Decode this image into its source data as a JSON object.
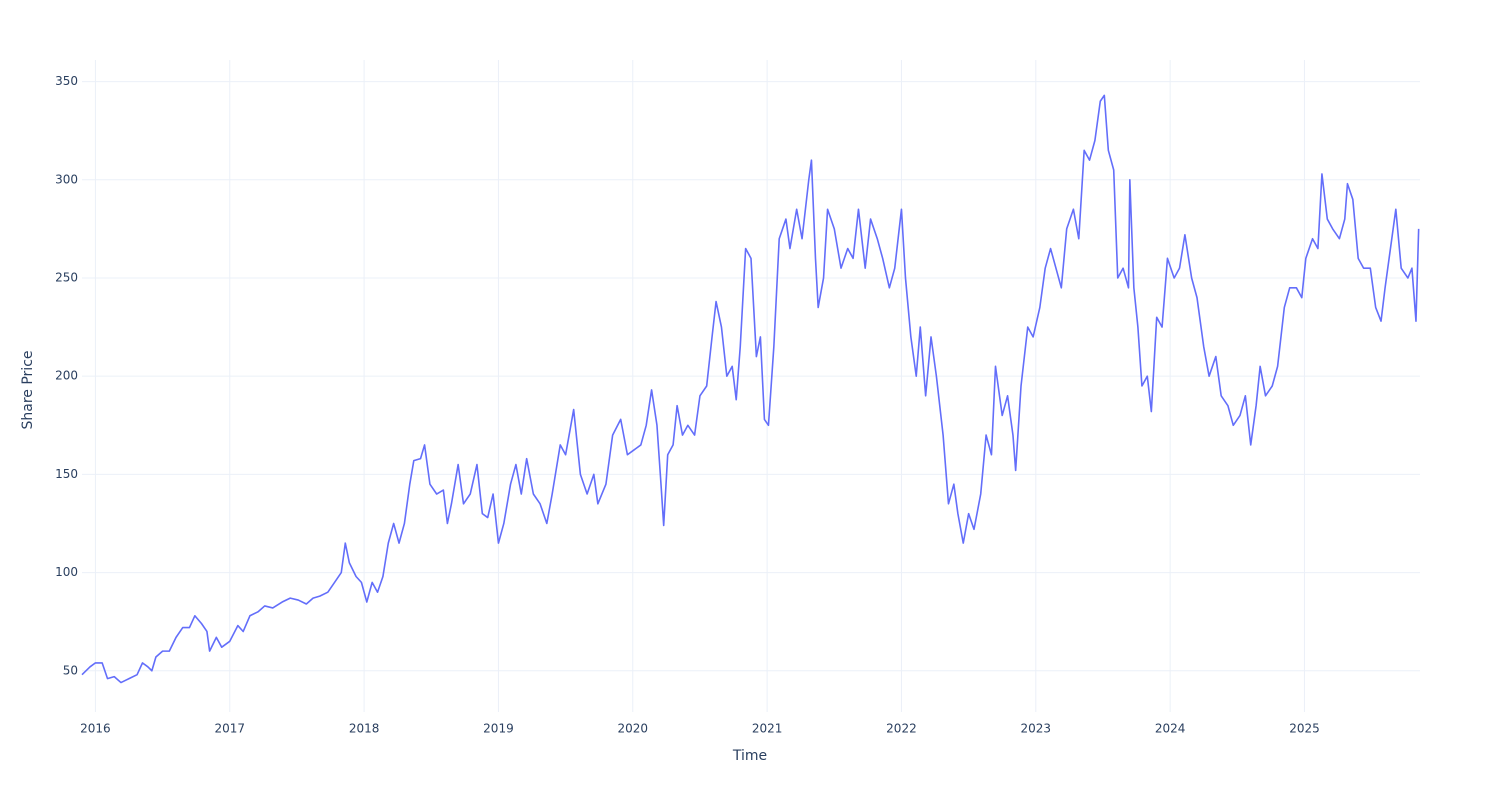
{
  "chart_data": {
    "type": "line",
    "x_label": "Time",
    "y_label": "Share Price",
    "color": "#636efa",
    "grid": true,
    "xlim": [
      2015.9,
      2025.86
    ],
    "ylim": [
      29,
      361
    ],
    "xticks": [
      2016,
      2017,
      2018,
      2019,
      2020,
      2021,
      2022,
      2023,
      2024,
      2025
    ],
    "yticks": [
      50,
      100,
      150,
      200,
      250,
      300,
      350
    ],
    "x": [
      2015.9,
      2015.96,
      2016.0,
      2016.05,
      2016.09,
      2016.14,
      2016.19,
      2016.25,
      2016.31,
      2016.35,
      2016.39,
      2016.42,
      2016.45,
      2016.5,
      2016.55,
      2016.6,
      2016.65,
      2016.7,
      2016.74,
      2016.79,
      2016.83,
      2016.85,
      2016.9,
      2016.94,
      2017.0,
      2017.06,
      2017.1,
      2017.15,
      2017.21,
      2017.26,
      2017.32,
      2017.39,
      2017.45,
      2017.51,
      2017.57,
      2017.62,
      2017.67,
      2017.73,
      2017.78,
      2017.83,
      2017.86,
      2017.89,
      2017.94,
      2017.98,
      2018.02,
      2018.06,
      2018.1,
      2018.14,
      2018.18,
      2018.22,
      2018.26,
      2018.3,
      2018.34,
      2018.37,
      2018.42,
      2018.45,
      2018.49,
      2018.54,
      2018.59,
      2018.62,
      2018.65,
      2018.7,
      2018.74,
      2018.79,
      2018.84,
      2018.88,
      2018.92,
      2018.96,
      2019.0,
      2019.04,
      2019.09,
      2019.13,
      2019.17,
      2019.21,
      2019.26,
      2019.31,
      2019.36,
      2019.4,
      2019.46,
      2019.5,
      2019.56,
      2019.61,
      2019.66,
      2019.71,
      2019.74,
      2019.8,
      2019.85,
      2019.91,
      2019.96,
      2020.0,
      2020.06,
      2020.1,
      2020.14,
      2020.18,
      2020.21,
      2020.23,
      2020.26,
      2020.3,
      2020.33,
      2020.37,
      2020.41,
      2020.46,
      2020.5,
      2020.55,
      2020.59,
      2020.62,
      2020.66,
      2020.7,
      2020.74,
      2020.77,
      2020.8,
      2020.84,
      2020.88,
      2020.92,
      2020.95,
      2020.98,
      2021.01,
      2021.05,
      2021.09,
      2021.14,
      2021.17,
      2021.22,
      2021.26,
      2021.31,
      2021.33,
      2021.36,
      2021.38,
      2021.42,
      2021.45,
      2021.5,
      2021.55,
      2021.6,
      2021.64,
      2021.68,
      2021.73,
      2021.77,
      2021.82,
      2021.86,
      2021.91,
      2021.95,
      2022.0,
      2022.03,
      2022.07,
      2022.11,
      2022.14,
      2022.18,
      2022.22,
      2022.26,
      2022.31,
      2022.35,
      2022.39,
      2022.42,
      2022.46,
      2022.5,
      2022.54,
      2022.59,
      2022.63,
      2022.67,
      2022.7,
      2022.75,
      2022.79,
      2022.83,
      2022.85,
      2022.89,
      2022.94,
      2022.98,
      2023.03,
      2023.07,
      2023.11,
      2023.15,
      2023.19,
      2023.23,
      2023.28,
      2023.32,
      2023.36,
      2023.4,
      2023.44,
      2023.48,
      2023.51,
      2023.54,
      2023.58,
      2023.61,
      2023.65,
      2023.69,
      2023.7,
      2023.73,
      2023.76,
      2023.79,
      2023.83,
      2023.86,
      2023.9,
      2023.94,
      2023.98,
      2024.03,
      2024.07,
      2024.11,
      2024.16,
      2024.2,
      2024.25,
      2024.29,
      2024.34,
      2024.38,
      2024.43,
      2024.47,
      2024.52,
      2024.56,
      2024.6,
      2024.64,
      2024.67,
      2024.71,
      2024.76,
      2024.8,
      2024.85,
      2024.89,
      2024.94,
      2024.98,
      2025.01,
      2025.06,
      2025.1,
      2025.13,
      2025.17,
      2025.21,
      2025.26,
      2025.3,
      2025.32,
      2025.36,
      2025.4,
      2025.44,
      2025.49,
      2025.53,
      2025.57,
      2025.6,
      2025.65,
      2025.68,
      2025.72,
      2025.77,
      2025.8,
      2025.83,
      2025.85
    ],
    "values": [
      48,
      52,
      54,
      54,
      46,
      47,
      44,
      46,
      48,
      54,
      52,
      50,
      57,
      60,
      60,
      67,
      72,
      72,
      78,
      74,
      70,
      60,
      67,
      62,
      65,
      73,
      70,
      78,
      80,
      83,
      82,
      85,
      87,
      86,
      84,
      87,
      88,
      90,
      95,
      100,
      115,
      105,
      98,
      95,
      85,
      95,
      90,
      98,
      115,
      125,
      115,
      125,
      145,
      157,
      158,
      165,
      145,
      140,
      142,
      125,
      135,
      155,
      135,
      140,
      155,
      130,
      128,
      140,
      115,
      125,
      145,
      155,
      140,
      158,
      140,
      135,
      125,
      140,
      165,
      160,
      183,
      150,
      140,
      150,
      135,
      145,
      170,
      178,
      160,
      162,
      165,
      175,
      193,
      175,
      145,
      124,
      160,
      165,
      185,
      170,
      175,
      170,
      190,
      195,
      220,
      238,
      225,
      200,
      205,
      188,
      215,
      265,
      260,
      210,
      220,
      178,
      175,
      215,
      270,
      280,
      265,
      285,
      270,
      300,
      310,
      260,
      235,
      250,
      285,
      275,
      255,
      265,
      260,
      285,
      255,
      280,
      270,
      260,
      245,
      255,
      285,
      250,
      220,
      200,
      225,
      190,
      220,
      200,
      170,
      135,
      145,
      130,
      115,
      130,
      122,
      140,
      170,
      160,
      205,
      180,
      190,
      170,
      152,
      195,
      225,
      220,
      235,
      255,
      265,
      255,
      245,
      275,
      285,
      270,
      315,
      310,
      320,
      340,
      343,
      315,
      305,
      250,
      255,
      245,
      300,
      245,
      225,
      195,
      200,
      182,
      230,
      225,
      260,
      250,
      255,
      272,
      250,
      240,
      215,
      200,
      210,
      190,
      185,
      175,
      180,
      190,
      165,
      185,
      205,
      190,
      195,
      205,
      235,
      245,
      245,
      240,
      260,
      270,
      265,
      303,
      280,
      275,
      270,
      280,
      298,
      290,
      260,
      255,
      255,
      235,
      228,
      245,
      270,
      285,
      255,
      250,
      255,
      228,
      275
    ]
  }
}
